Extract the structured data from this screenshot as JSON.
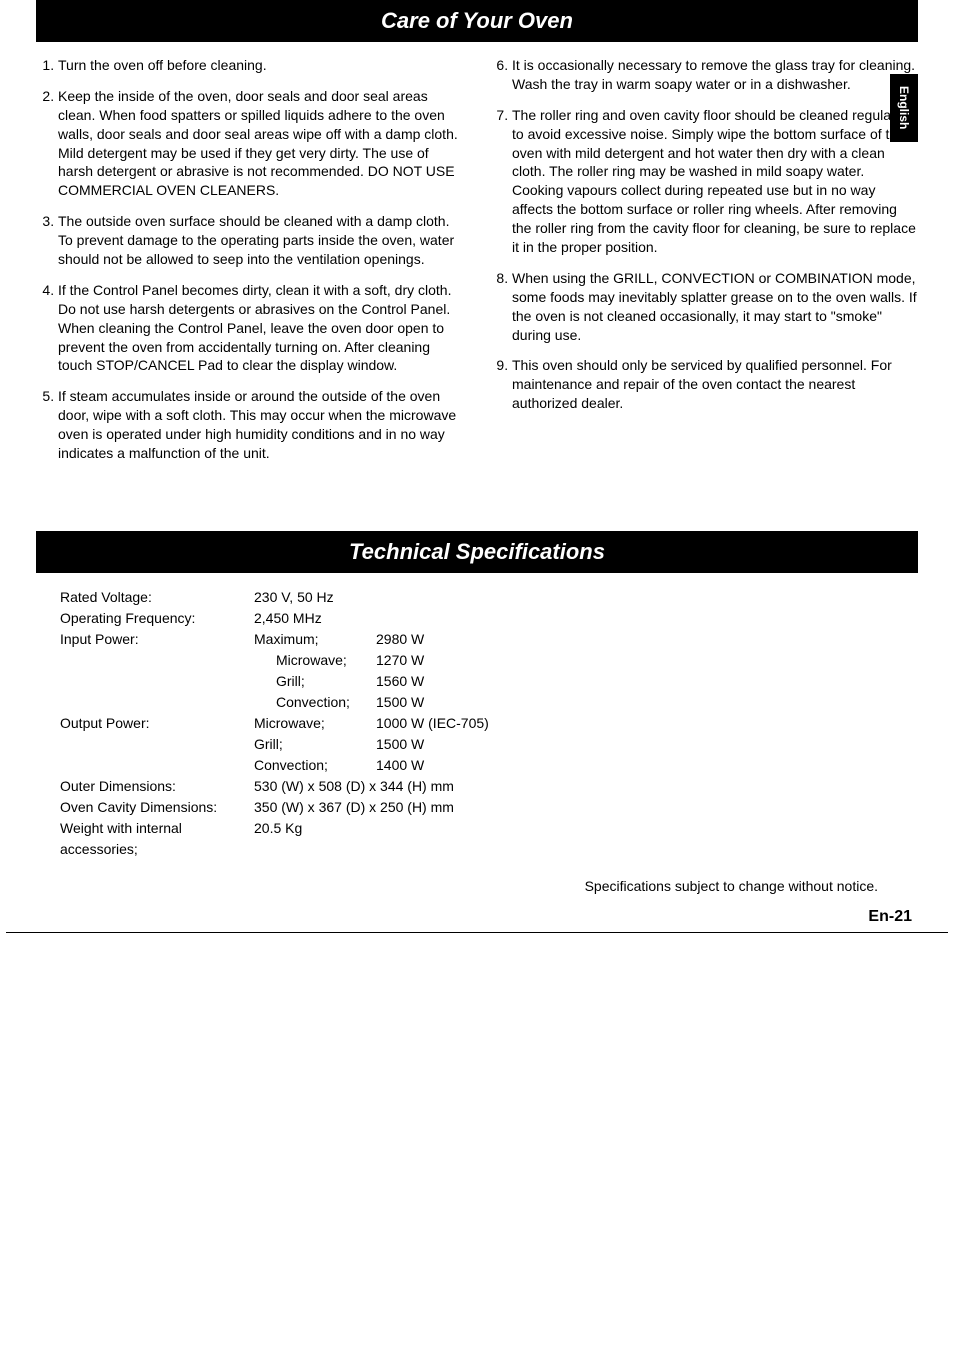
{
  "side_tab": "English",
  "care": {
    "title": "Care of Your Oven",
    "items_left": [
      "Turn the oven off before cleaning.",
      "Keep the inside of the oven, door seals and door seal areas clean. When food spatters or spilled liquids adhere to the oven walls, door seals and door seal areas wipe off with a damp cloth. Mild detergent may be used if they get very dirty. The use of harsh detergent or abrasive is not recommended. DO NOT USE COMMERCIAL OVEN CLEANERS.",
      "The outside oven surface should be cleaned with a damp cloth. To prevent damage to the operating parts inside the oven, water should not be allowed to seep into the ventilation openings.",
      "If the Control Panel becomes dirty, clean it with a soft, dry cloth. Do not use harsh detergents or abrasives on the Control Panel. When cleaning the Control Panel, leave the oven door open to prevent the oven from accidentally turning on. After cleaning touch STOP/CANCEL Pad to clear the display window.",
      "If steam accumulates inside or around the outside of the oven door, wipe with a soft cloth. This may occur when the microwave oven is operated under high humidity conditions and in no way indicates a malfunction of the unit."
    ],
    "items_right": [
      "It is occasionally necessary to remove the glass tray for cleaning. Wash the tray in warm soapy water or in a dishwasher.",
      "The roller ring and oven cavity floor should be cleaned regularly to avoid excessive noise. Simply wipe the bottom surface of the oven with mild detergent and hot water then dry with a clean cloth. The roller ring may be washed in mild soapy water. Cooking vapours collect during repeated use but in no way affects the bottom surface or roller ring wheels. After removing the roller ring from the cavity floor for cleaning, be sure to replace it in the proper position.",
      "When using the GRILL, CONVECTION or COMBINATION mode, some foods may inevitably splatter grease on to the oven walls. If the oven is not cleaned occasionally, it may start to \"smoke\" during use.",
      "This oven should only be serviced by qualified personnel. For maintenance and repair of the oven contact the nearest authorized dealer."
    ]
  },
  "specs": {
    "title": "Technical Specifications",
    "rows": [
      {
        "label": "Rated Voltage:",
        "sub": "",
        "value": "230 V, 50 Hz"
      },
      {
        "label": "Operating Frequency:",
        "sub": "",
        "value": "2,450 MHz"
      },
      {
        "label": "Input Power:",
        "sub": "Maximum;",
        "value": "2980 W"
      },
      {
        "label": "",
        "sub_indent": true,
        "sub": "Microwave;",
        "value": "1270 W"
      },
      {
        "label": "",
        "sub_indent": true,
        "sub": "Grill;",
        "value": "1560 W"
      },
      {
        "label": "",
        "sub_indent": true,
        "sub": "Convection;",
        "value": "1500 W"
      },
      {
        "label": "Output Power:",
        "sub": "Microwave;",
        "value": "1000 W (IEC-705)"
      },
      {
        "label": "",
        "sub": "Grill;",
        "value": "1500 W"
      },
      {
        "label": "",
        "sub": "Convection;",
        "value": "1400 W"
      },
      {
        "label": "Outer Dimensions:",
        "sub": "",
        "value": "530 (W) x 508 (D) x 344 (H) mm"
      },
      {
        "label": "Oven Cavity Dimensions:",
        "sub": "",
        "value": "350 (W) x 367 (D) x 250 (H) mm"
      },
      {
        "label": "Weight with internal accessories;",
        "sub": "",
        "value": "20.5 Kg"
      }
    ],
    "note": "Specifications subject to change without notice."
  },
  "page_number": "En-21",
  "colors": {
    "banner_bg": "#000000",
    "banner_text": "#ffffff",
    "body_text": "#000000",
    "page_bg": "#ffffff"
  },
  "fonts": {
    "banner_size_pt": 22,
    "body_size_pt": 14,
    "page_num_size_pt": 16
  }
}
